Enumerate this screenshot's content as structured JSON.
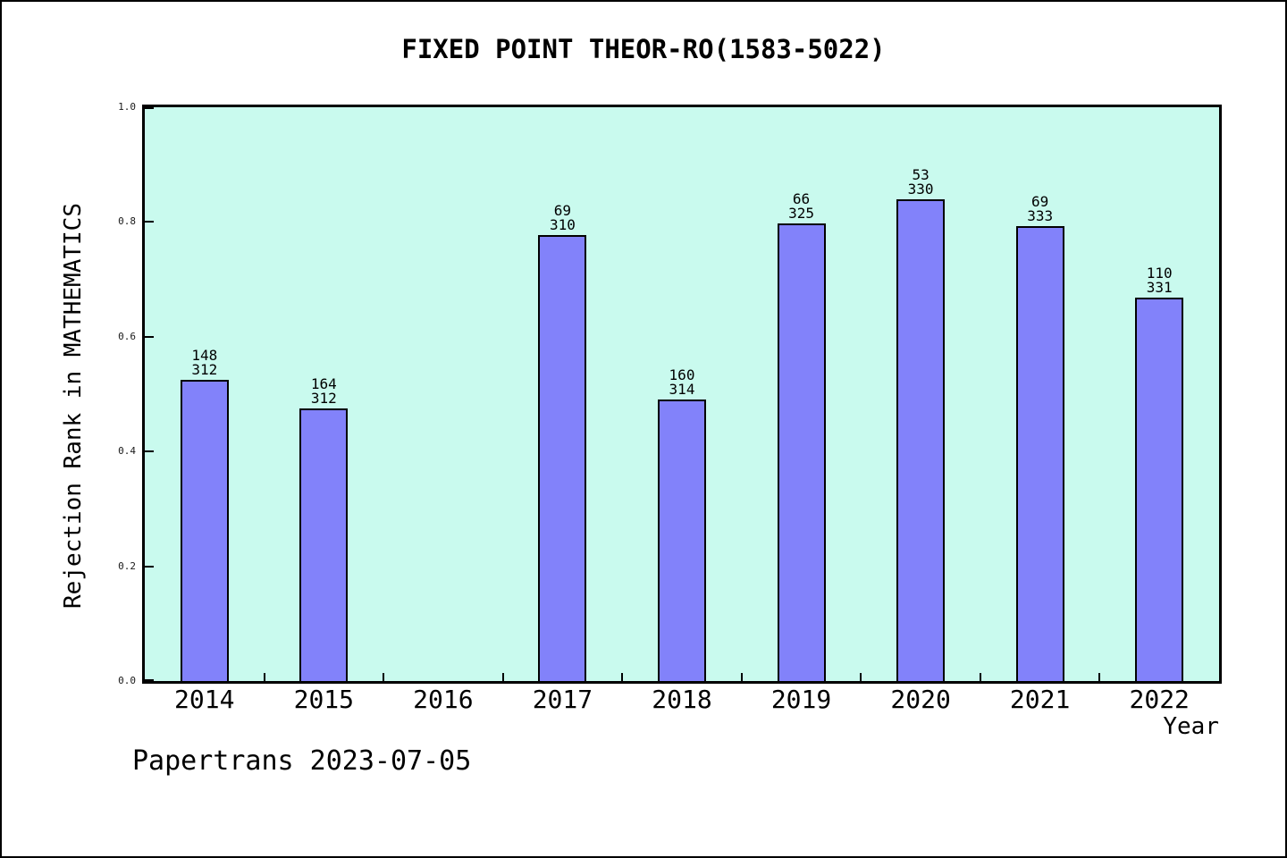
{
  "title": "FIXED POINT THEOR-RO(1583-5022)",
  "footer": "Papertrans 2023-07-05",
  "chart_data": {
    "type": "bar",
    "title": "FIXED POINT THEOR-RO(1583-5022)",
    "xlabel": "Year",
    "ylabel": "Rejection Rank in MATHEMATICS",
    "categories": [
      "2014",
      "2015",
      "2016",
      "2017",
      "2018",
      "2019",
      "2020",
      "2021",
      "2022"
    ],
    "bars": [
      {
        "year": "2014",
        "label_top": "148",
        "label_bottom": "312",
        "value": 0.5256
      },
      {
        "year": "2015",
        "label_top": "164",
        "label_bottom": "312",
        "value": 0.4744
      },
      {
        "year": "2016",
        "label_top": null,
        "label_bottom": null,
        "value": null
      },
      {
        "year": "2017",
        "label_top": "69",
        "label_bottom": "310",
        "value": 0.7774
      },
      {
        "year": "2018",
        "label_top": "160",
        "label_bottom": "314",
        "value": 0.4904
      },
      {
        "year": "2019",
        "label_top": "66",
        "label_bottom": "325",
        "value": 0.7969
      },
      {
        "year": "2020",
        "label_top": "53",
        "label_bottom": "330",
        "value": 0.8394
      },
      {
        "year": "2021",
        "label_top": "69",
        "label_bottom": "333",
        "value": 0.7928
      },
      {
        "year": "2022",
        "label_top": "110",
        "label_bottom": "331",
        "value": 0.6677
      }
    ],
    "ylim": [
      0.0,
      1.0
    ],
    "yticks": [
      "0.0",
      "0.2",
      "0.4",
      "0.6",
      "0.8",
      "1.0"
    ],
    "grid": false,
    "legend_position": "none",
    "colors": {
      "bar_fill": "#8282fa",
      "bar_edge": "#000000",
      "plot_background": "#c9faee",
      "page_background": "#ffffff",
      "text": "#000000"
    }
  }
}
